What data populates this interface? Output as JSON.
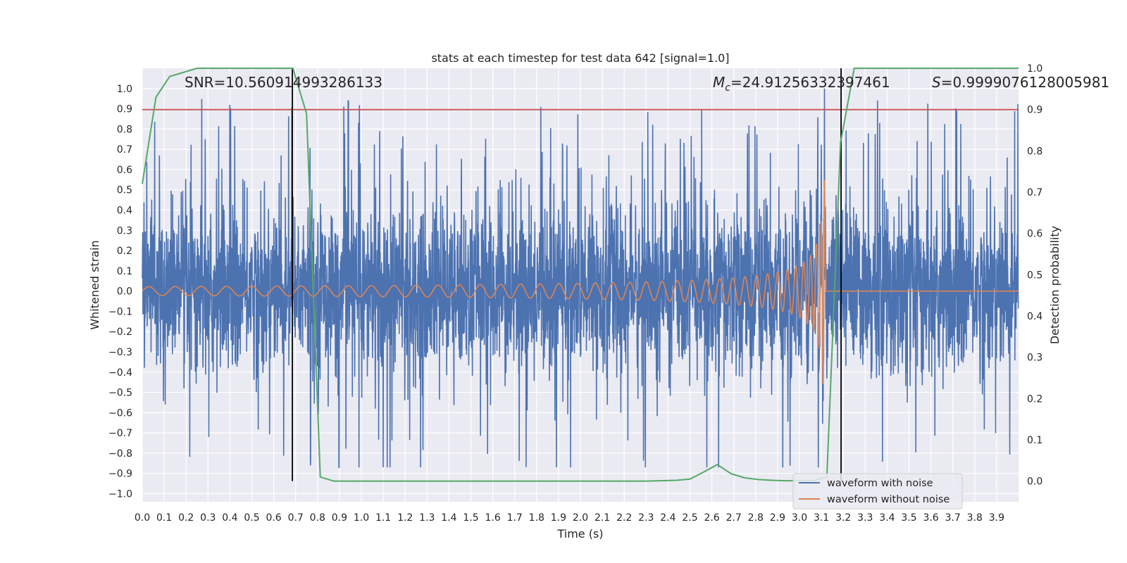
{
  "chart_data": {
    "type": "line",
    "title": "stats at each timestep for test data 642 [signal=1.0]",
    "xlabel": "Time (s)",
    "ylabel": "Whitened strain",
    "y2label": "Detection probability",
    "xlim": [
      0.0,
      4.0
    ],
    "ylim": [
      -1.04,
      1.1
    ],
    "y2lim": [
      -0.05,
      1.0
    ],
    "x_ticks": [
      0.0,
      0.1,
      0.2,
      0.3,
      0.4,
      0.5,
      0.6,
      0.7,
      0.8,
      0.9,
      1.0,
      1.1,
      1.2,
      1.3,
      1.4,
      1.5,
      1.6,
      1.7,
      1.8,
      1.9,
      2.0,
      2.1,
      2.2,
      2.3,
      2.4,
      2.5,
      2.6,
      2.7,
      2.8,
      2.9,
      3.0,
      3.1,
      3.2,
      3.3,
      3.4,
      3.5,
      3.6,
      3.7,
      3.8,
      3.9
    ],
    "x_tick_labels": [
      "0.0",
      "0.1",
      "0.2",
      "0.3",
      "0.4",
      "0.5",
      "0.6",
      "0.7",
      "0.8",
      "0.9",
      "1.0",
      "1.1",
      "1.2",
      "1.3",
      "1.4",
      "1.5",
      "1.6",
      "1.7",
      "1.8",
      "1.9",
      "2.0",
      "2.1",
      "2.2",
      "2.3",
      "2.4",
      "2.5",
      "2.6",
      "2.7",
      "2.8",
      "2.9",
      "3.0",
      "3.1",
      "3.2",
      "3.3",
      "3.4",
      "3.5",
      "3.6",
      "3.7",
      "3.8",
      "3.9"
    ],
    "y_ticks": [
      1.0,
      0.9,
      0.8,
      0.7,
      0.6,
      0.5,
      0.4,
      0.3,
      0.2,
      0.1,
      0.0,
      -0.1,
      -0.2,
      -0.3,
      -0.4,
      -0.5,
      -0.6,
      -0.7,
      -0.8,
      -0.9,
      -1.0
    ],
    "y_tick_labels": [
      "1.0",
      "0.9",
      "0.8",
      "0.7",
      "0.6",
      "0.5",
      "0.4",
      "0.3",
      "0.2",
      "0.1",
      "0.0",
      "−0.1",
      "−0.2",
      "−0.3",
      "−0.4",
      "−0.5",
      "−0.6",
      "−0.7",
      "−0.8",
      "−0.9",
      "−1.0"
    ],
    "y2_ticks": [
      1.0,
      0.9,
      0.8,
      0.7,
      0.6,
      0.5,
      0.4,
      0.3,
      0.2,
      0.1,
      0.0
    ],
    "y2_tick_labels": [
      "1.0",
      "0.9",
      "0.8",
      "0.7",
      "0.6",
      "0.5",
      "0.4",
      "0.3",
      "0.2",
      "0.1",
      "0.0"
    ],
    "grid": true,
    "series": [
      {
        "name": "waveform with noise",
        "color": "#4c72b0",
        "kind": "noise",
        "amplitude_range": [
          -0.87,
          1.0
        ]
      },
      {
        "name": "waveform without noise",
        "color": "#dd8452",
        "kind": "chirp",
        "start_amplitude": 0.02,
        "peak_amplitude": 0.55,
        "merger_time": 3.12,
        "peak_frequency_hz": 150
      },
      {
        "name": "detection probability",
        "color": "#55a868",
        "axis": "right",
        "x": [
          0.0,
          0.0625,
          0.125,
          0.1875,
          0.25,
          0.3125,
          0.375,
          0.4375,
          0.5,
          0.5625,
          0.625,
          0.6875,
          0.75,
          0.8125,
          0.875,
          0.9375,
          1.0,
          1.5,
          2.0,
          2.3,
          2.4375,
          2.5,
          2.5625,
          2.625,
          2.6875,
          2.75,
          2.8125,
          2.875,
          2.9375,
          3.0,
          3.0625,
          3.125,
          3.1875,
          3.25,
          3.3125,
          3.5,
          3.75,
          4.0
        ],
        "y": [
          0.72,
          0.93,
          0.98,
          0.99,
          1.0,
          1.0,
          1.0,
          1.0,
          1.0,
          1.0,
          1.0,
          1.0,
          0.89,
          0.01,
          0.0,
          0.0,
          0.0,
          0.0,
          0.0,
          0.0,
          0.002,
          0.005,
          0.022,
          0.04,
          0.018,
          0.008,
          0.004,
          0.002,
          0.001,
          0.001,
          0.001,
          0.01,
          0.82,
          1.0,
          1.0,
          1.0,
          1.0,
          1.0
        ]
      }
    ],
    "threshold": {
      "value": 0.9,
      "axis": "right",
      "color": "#c44e52"
    },
    "vertical_markers": [
      0.685,
      3.19
    ],
    "annotations": {
      "snr": "SNR=10.560914993286133",
      "mc_symbol": "M",
      "mc_subscript": "c",
      "mc_value": "=24.91256332397461",
      "s_symbol": "S",
      "s_value": "=0.9999076128005981"
    },
    "legend": {
      "position": "bottom-right",
      "entries": [
        "waveform with noise",
        "waveform without noise"
      ]
    }
  }
}
